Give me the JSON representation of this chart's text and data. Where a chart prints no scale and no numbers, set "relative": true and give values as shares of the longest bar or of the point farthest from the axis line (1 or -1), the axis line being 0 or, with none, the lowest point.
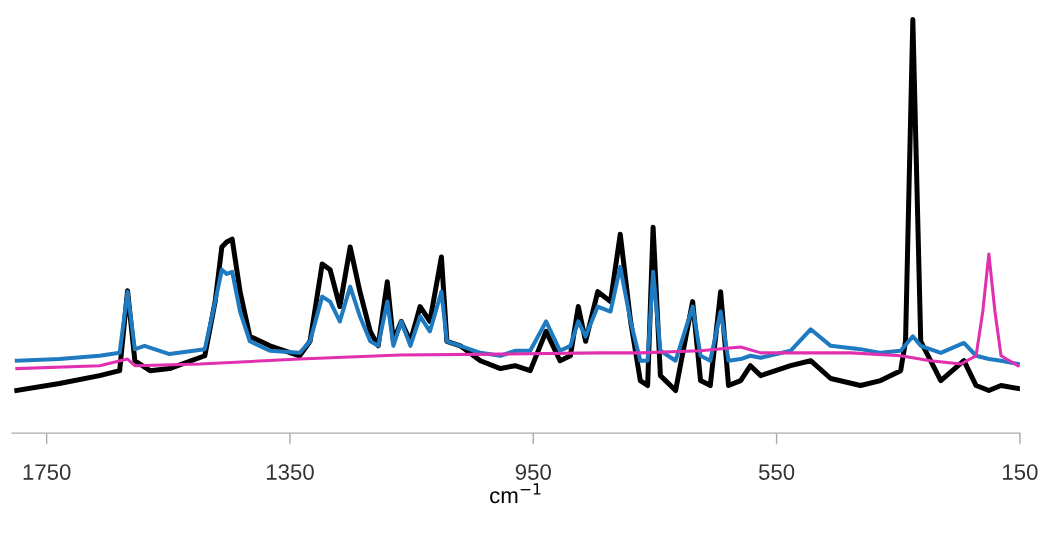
{
  "chart_data": {
    "type": "line",
    "xlabel": "cm$^{−1}$",
    "relative": true,
    "xlim": [
      1807,
      150
    ],
    "xticks": [
      1750,
      1350,
      950,
      550,
      150
    ],
    "grid": false,
    "legend": false,
    "tick_labels": "x",
    "series": [
      {
        "color": "#000000",
        "x": [
          1799,
          1729,
          1663,
          1630,
          1617,
          1605,
          1580,
          1548,
          1490,
          1473,
          1462,
          1454,
          1445,
          1432,
          1416,
          1383,
          1334,
          1317,
          1297,
          1284,
          1268,
          1251,
          1235,
          1218,
          1205,
          1190,
          1180,
          1167,
          1152,
          1136,
          1120,
          1101,
          1092,
          1070,
          1037,
          1004,
          980,
          955,
          929,
          906,
          889,
          876,
          864,
          844,
          823,
          807,
          790,
          774,
          762,
          753,
          741,
          716,
          688,
          675,
          659,
          642,
          629,
          609,
          593,
          576,
          527,
          494,
          461,
          412,
          379,
          346,
          338,
          326,
          313,
          280,
          242,
          222,
          201,
          181,
          153
        ],
        "values": [
          0.103,
          0.12,
          0.139,
          0.151,
          0.344,
          0.175,
          0.151,
          0.156,
          0.187,
          0.318,
          0.45,
          0.462,
          0.469,
          0.342,
          0.234,
          0.211,
          0.187,
          0.222,
          0.409,
          0.395,
          0.306,
          0.45,
          0.342,
          0.246,
          0.211,
          0.366,
          0.222,
          0.27,
          0.222,
          0.306,
          0.27,
          0.426,
          0.222,
          0.211,
          0.175,
          0.156,
          0.163,
          0.151,
          0.246,
          0.175,
          0.187,
          0.306,
          0.222,
          0.342,
          0.318,
          0.481,
          0.27,
          0.127,
          0.115,
          0.498,
          0.139,
          0.103,
          0.318,
          0.127,
          0.115,
          0.342,
          0.115,
          0.127,
          0.163,
          0.139,
          0.163,
          0.175,
          0.132,
          0.115,
          0.127,
          0.151,
          0.222,
          1.0,
          0.222,
          0.127,
          0.175,
          0.115,
          0.103,
          0.115,
          0.108
        ]
      },
      {
        "color": "#1f7bc1",
        "x": [
          1799,
          1729,
          1663,
          1630,
          1617,
          1605,
          1589,
          1548,
          1490,
          1473,
          1462,
          1454,
          1445,
          1432,
          1416,
          1383,
          1334,
          1317,
          1297,
          1284,
          1268,
          1251,
          1235,
          1218,
          1205,
          1190,
          1180,
          1167,
          1152,
          1136,
          1120,
          1101,
          1092,
          1070,
          1037,
          1004,
          980,
          955,
          929,
          906,
          889,
          876,
          864,
          844,
          823,
          807,
          790,
          774,
          762,
          753,
          741,
          716,
          688,
          675,
          659,
          642,
          629,
          609,
          593,
          576,
          527,
          494,
          461,
          412,
          379,
          346,
          326,
          313,
          280,
          242,
          222,
          201,
          181,
          153
        ],
        "values": [
          0.175,
          0.179,
          0.187,
          0.194,
          0.342,
          0.203,
          0.211,
          0.191,
          0.203,
          0.318,
          0.395,
          0.385,
          0.39,
          0.294,
          0.222,
          0.199,
          0.194,
          0.222,
          0.33,
          0.318,
          0.27,
          0.354,
          0.282,
          0.222,
          0.211,
          0.318,
          0.211,
          0.27,
          0.211,
          0.282,
          0.246,
          0.342,
          0.222,
          0.211,
          0.194,
          0.187,
          0.199,
          0.199,
          0.27,
          0.199,
          0.211,
          0.27,
          0.234,
          0.306,
          0.294,
          0.402,
          0.27,
          0.175,
          0.175,
          0.39,
          0.199,
          0.175,
          0.306,
          0.187,
          0.175,
          0.294,
          0.175,
          0.179,
          0.187,
          0.182,
          0.199,
          0.251,
          0.211,
          0.203,
          0.194,
          0.199,
          0.234,
          0.211,
          0.194,
          0.218,
          0.187,
          0.179,
          0.175,
          0.167
        ]
      },
      {
        "color": "#e030b0",
        "x": [
          1799,
          1663,
          1617,
          1605,
          1498,
          1334,
          1169,
          1004,
          840,
          774,
          675,
          609,
          576,
          428,
          346,
          297,
          247,
          222,
          211,
          201,
          191,
          181,
          153
        ],
        "values": [
          0.156,
          0.163,
          0.179,
          0.163,
          0.167,
          0.179,
          0.189,
          0.191,
          0.194,
          0.194,
          0.199,
          0.208,
          0.194,
          0.194,
          0.187,
          0.175,
          0.167,
          0.187,
          0.294,
          0.433,
          0.294,
          0.187,
          0.163
        ]
      }
    ]
  }
}
